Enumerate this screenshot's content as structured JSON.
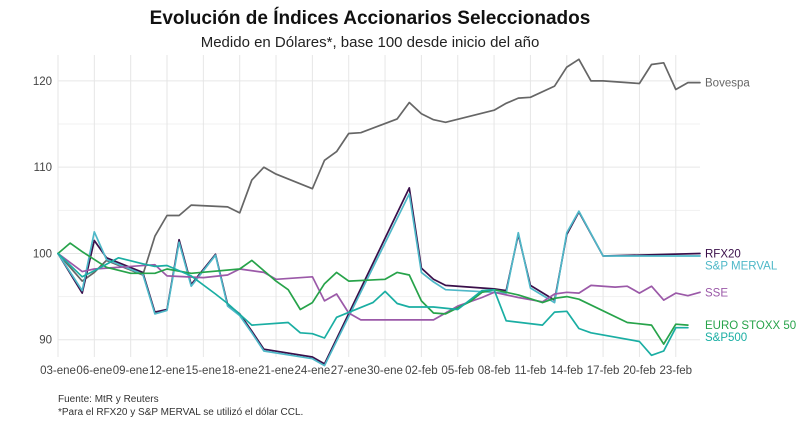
{
  "chart_data": {
    "type": "line",
    "title": "Evolución de Índices Accionarios Seleccionados",
    "subtitle": "Medido en Dólares*, base 100 desde inicio del año",
    "xlabel": "",
    "ylabel": "",
    "ylim": [
      88,
      123
    ],
    "y_ticks": [
      90,
      100,
      110,
      120
    ],
    "x_tick_labels": [
      "03-ene",
      "06-ene",
      "09-ene",
      "12-ene",
      "15-ene",
      "18-ene",
      "21-ene",
      "24-ene",
      "27-ene",
      "30-ene",
      "02-feb",
      "05-feb",
      "08-feb",
      "11-feb",
      "14-feb",
      "17-feb",
      "20-feb",
      "23-feb"
    ],
    "x_tick_days": [
      0,
      3,
      6,
      9,
      12,
      15,
      18,
      21,
      24,
      27,
      30,
      33,
      36,
      39,
      42,
      45,
      48,
      51
    ],
    "grid": true,
    "legend": "right-end labels",
    "source": "Fuente: MtR y Reuters",
    "footnote": "*Para el RFX20 y S&P MERVAL se utilizó el dólar CCL.",
    "series": [
      {
        "name": "Bovespa",
        "color": "#666666",
        "points": [
          [
            0,
            100
          ],
          [
            2,
            96.8
          ],
          [
            3,
            97.8
          ],
          [
            4,
            99.2
          ],
          [
            7,
            97.5
          ],
          [
            8,
            102
          ],
          [
            9,
            104.4
          ],
          [
            10,
            104.4
          ],
          [
            11,
            105.6
          ],
          [
            14,
            105.4
          ],
          [
            15,
            104.7
          ],
          [
            16,
            108.5
          ],
          [
            17,
            110
          ],
          [
            18,
            109.2
          ],
          [
            21,
            107.5
          ],
          [
            22,
            110.8
          ],
          [
            23,
            111.8
          ],
          [
            24,
            113.9
          ],
          [
            25,
            114
          ],
          [
            28,
            115.6
          ],
          [
            29,
            117.5
          ],
          [
            30,
            116.2
          ],
          [
            31,
            115.5
          ],
          [
            32,
            115.2
          ],
          [
            36,
            116.6
          ],
          [
            37,
            117.4
          ],
          [
            38,
            118
          ],
          [
            39,
            118.1
          ],
          [
            41,
            119.4
          ],
          [
            42,
            121.6
          ],
          [
            43,
            122.5
          ],
          [
            44,
            120
          ],
          [
            45,
            120
          ],
          [
            48,
            119.7
          ],
          [
            49,
            121.9
          ],
          [
            50,
            122.1
          ],
          [
            51,
            119
          ],
          [
            52,
            119.8
          ],
          [
            53,
            119.8
          ]
        ]
      },
      {
        "name": "RFX20",
        "color": "#3a0f4a",
        "points": [
          [
            0,
            100
          ],
          [
            2,
            95.4
          ],
          [
            3,
            101.5
          ],
          [
            4,
            99.5
          ],
          [
            7,
            97.8
          ],
          [
            8,
            93.2
          ],
          [
            9,
            93.5
          ],
          [
            10,
            101.6
          ],
          [
            11,
            96.4
          ],
          [
            13,
            99.9
          ],
          [
            14,
            94.1
          ],
          [
            15,
            93
          ],
          [
            16,
            91
          ],
          [
            17,
            88.9
          ],
          [
            21,
            88
          ],
          [
            22,
            87.2
          ],
          [
            29,
            107.6
          ],
          [
            30,
            98.3
          ],
          [
            31,
            97
          ],
          [
            32,
            96.3
          ],
          [
            35,
            96
          ],
          [
            36,
            95.9
          ],
          [
            37,
            95.7
          ],
          [
            38,
            102.2
          ],
          [
            39,
            96.3
          ],
          [
            41,
            94.6
          ],
          [
            42,
            102.2
          ],
          [
            43,
            104.8
          ],
          [
            45,
            99.7
          ],
          [
            53,
            100
          ]
        ]
      },
      {
        "name": "S&P MERVAL",
        "color": "#4fb8c8",
        "points": [
          [
            0,
            100
          ],
          [
            2,
            95.7
          ],
          [
            3,
            102.5
          ],
          [
            4,
            99.3
          ],
          [
            7,
            97.6
          ],
          [
            8,
            93
          ],
          [
            9,
            93.4
          ],
          [
            10,
            101.3
          ],
          [
            11,
            96.2
          ],
          [
            13,
            99.8
          ],
          [
            14,
            93.9
          ],
          [
            15,
            92.8
          ],
          [
            16,
            90.8
          ],
          [
            17,
            88.7
          ],
          [
            21,
            87.8
          ],
          [
            22,
            87
          ],
          [
            29,
            106.9
          ],
          [
            30,
            97.8
          ],
          [
            31,
            96.7
          ],
          [
            32,
            95.8
          ],
          [
            36,
            95.5
          ],
          [
            37,
            95.4
          ],
          [
            38,
            102.4
          ],
          [
            39,
            96
          ],
          [
            41,
            94.3
          ],
          [
            42,
            102.4
          ],
          [
            43,
            104.9
          ],
          [
            45,
            99.7
          ],
          [
            53,
            99.7
          ]
        ]
      },
      {
        "name": "SSE",
        "color": "#9b59a8",
        "points": [
          [
            0,
            100
          ],
          [
            2,
            97.9
          ],
          [
            3,
            98.2
          ],
          [
            8,
            98.7
          ],
          [
            9,
            97.4
          ],
          [
            12,
            97.2
          ],
          [
            14,
            97.5
          ],
          [
            15,
            98.2
          ],
          [
            17,
            97.8
          ],
          [
            18,
            97
          ],
          [
            21,
            97.3
          ],
          [
            22,
            94.5
          ],
          [
            23,
            95.3
          ],
          [
            24,
            93.1
          ],
          [
            25,
            92.3
          ],
          [
            30,
            92.3
          ],
          [
            31,
            92.3
          ],
          [
            32,
            93.1
          ],
          [
            33,
            93.9
          ],
          [
            35,
            94.9
          ],
          [
            36,
            95.5
          ],
          [
            38,
            94.9
          ],
          [
            40,
            94.4
          ],
          [
            41,
            95.3
          ],
          [
            42,
            95.5
          ],
          [
            43,
            95.4
          ],
          [
            44,
            96.3
          ],
          [
            46,
            96.1
          ],
          [
            47,
            96.2
          ],
          [
            48,
            95.4
          ],
          [
            49,
            96.2
          ],
          [
            50,
            94.6
          ],
          [
            51,
            95.4
          ],
          [
            52,
            95.1
          ],
          [
            53,
            95.5
          ]
        ]
      },
      {
        "name": "EURO STOXX 50",
        "color": "#27a34a",
        "points": [
          [
            0,
            100
          ],
          [
            1,
            101.2
          ],
          [
            2,
            100.2
          ],
          [
            4,
            98.4
          ],
          [
            6,
            97.7
          ],
          [
            8,
            97.7
          ],
          [
            9,
            98.2
          ],
          [
            11,
            97.7
          ],
          [
            15,
            98.2
          ],
          [
            16,
            99.2
          ],
          [
            18,
            96.8
          ],
          [
            19,
            95.8
          ],
          [
            20,
            93.5
          ],
          [
            21,
            94.3
          ],
          [
            22,
            96.5
          ],
          [
            23,
            97.8
          ],
          [
            24,
            96.8
          ],
          [
            27,
            97
          ],
          [
            28,
            97.8
          ],
          [
            29,
            97.5
          ],
          [
            30,
            94.5
          ],
          [
            31,
            93.1
          ],
          [
            32,
            93
          ],
          [
            34,
            94.4
          ],
          [
            35,
            95.5
          ],
          [
            36,
            95.8
          ],
          [
            38,
            95.2
          ],
          [
            40,
            94.3
          ],
          [
            41,
            94.8
          ],
          [
            42,
            95
          ],
          [
            43,
            94.7
          ],
          [
            47,
            92
          ],
          [
            49,
            91.7
          ],
          [
            50,
            89.5
          ],
          [
            51,
            91.8
          ],
          [
            52,
            91.7
          ]
        ]
      },
      {
        "name": "S&P500",
        "color": "#1aaea3",
        "points": [
          [
            0,
            100
          ],
          [
            2,
            97.3
          ],
          [
            3,
            98
          ],
          [
            5,
            99.5
          ],
          [
            7,
            98.8
          ],
          [
            8,
            98.5
          ],
          [
            9,
            98.6
          ],
          [
            11,
            97.4
          ],
          [
            13,
            95.3
          ],
          [
            14,
            94.2
          ],
          [
            16,
            91.7
          ],
          [
            19,
            92
          ],
          [
            20,
            90.8
          ],
          [
            21,
            90.7
          ],
          [
            22,
            90.2
          ],
          [
            23,
            92.6
          ],
          [
            26,
            94.3
          ],
          [
            27,
            95.6
          ],
          [
            28,
            94.2
          ],
          [
            29,
            93.8
          ],
          [
            31,
            93.8
          ],
          [
            33,
            93.5
          ],
          [
            35,
            95.7
          ],
          [
            36,
            95.8
          ],
          [
            37,
            92.2
          ],
          [
            40,
            91.7
          ],
          [
            41,
            93.2
          ],
          [
            42,
            93.3
          ],
          [
            43,
            91.3
          ],
          [
            44,
            90.8
          ],
          [
            48,
            89.8
          ],
          [
            49,
            88.2
          ],
          [
            50,
            88.7
          ],
          [
            51,
            91.4
          ],
          [
            52,
            91.4
          ]
        ]
      }
    ]
  }
}
